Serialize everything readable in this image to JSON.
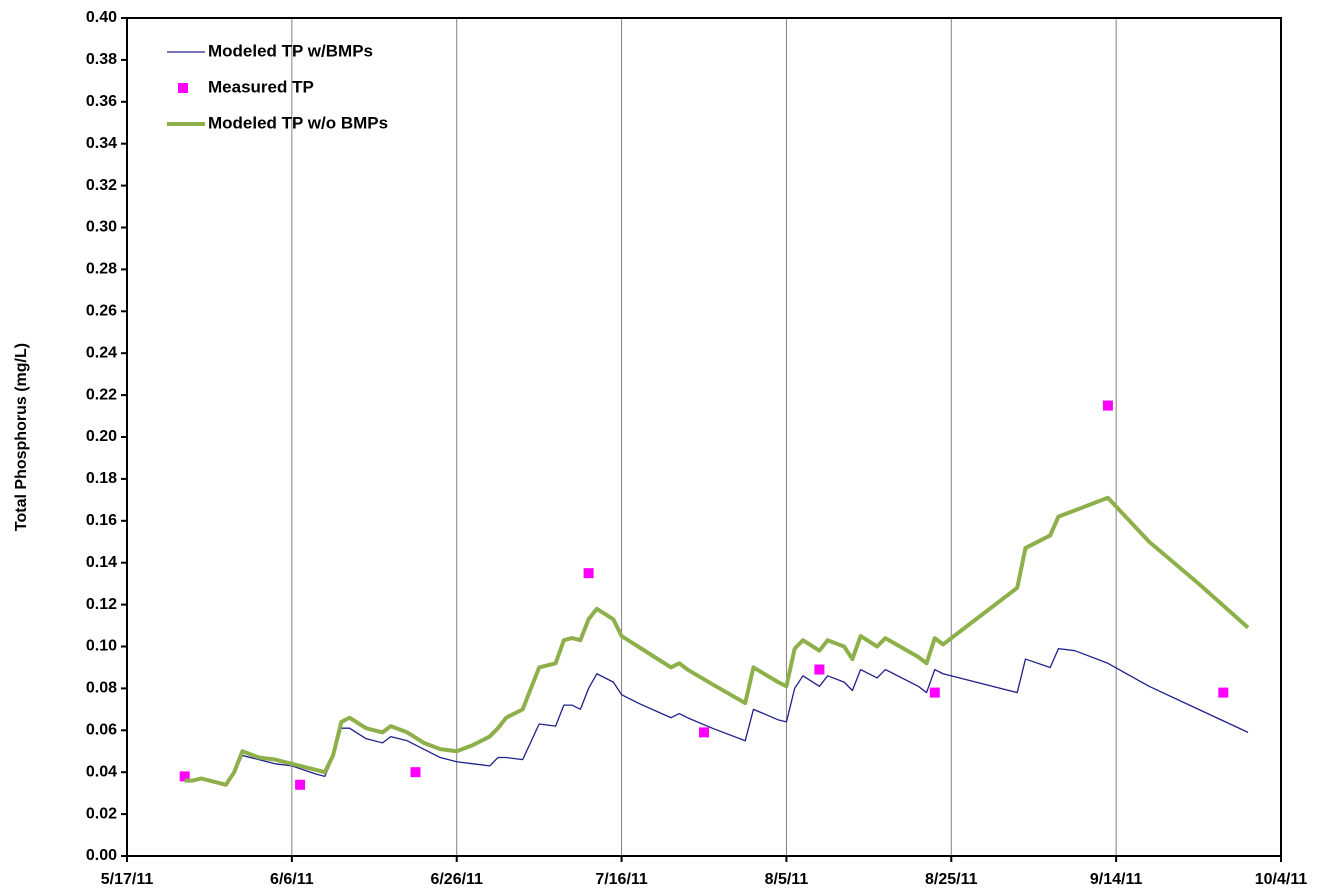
{
  "chart_data": {
    "type": "line",
    "ylabel": "Total Phosphorus (mg/L)",
    "xlim": [
      "2011-05-17",
      "2011-10-04"
    ],
    "xticks": [
      {
        "value": "2011-05-17",
        "label": "5/17/11"
      },
      {
        "value": "2011-06-06",
        "label": "6/6/11"
      },
      {
        "value": "2011-06-26",
        "label": "6/26/11"
      },
      {
        "value": "2011-07-16",
        "label": "7/16/11"
      },
      {
        "value": "2011-08-05",
        "label": "8/5/11"
      },
      {
        "value": "2011-08-25",
        "label": "8/25/11"
      },
      {
        "value": "2011-09-14",
        "label": "9/14/11"
      },
      {
        "value": "2011-10-04",
        "label": "10/4/11"
      }
    ],
    "ylim": [
      0,
      0.4
    ],
    "yticks": [
      {
        "value": 0,
        "label": "0.00"
      },
      0.02,
      0.04,
      0.06,
      0.08,
      {
        "value": 0.1,
        "label": "0.10"
      },
      0.12,
      0.14,
      0.16,
      0.18,
      {
        "value": 0.2,
        "label": "0.20"
      },
      0.22,
      0.24,
      0.26,
      0.28,
      {
        "value": 0.3,
        "label": "0.30"
      },
      0.32,
      0.34,
      0.36,
      0.38,
      {
        "value": 0.4,
        "label": "0.40"
      }
    ],
    "grid": "x",
    "legend": "upper left",
    "series": [
      {
        "name": "Modeled TP w/BMPs",
        "style": "line",
        "color": "#20208c",
        "x": [
          "2011-05-24",
          "2011-05-25",
          "2011-05-26",
          "2011-05-29",
          "2011-05-30",
          "2011-05-31",
          "2011-06-02",
          "2011-06-04",
          "2011-06-06",
          "2011-06-09",
          "2011-06-10",
          "2011-06-11",
          "2011-06-12",
          "2011-06-13",
          "2011-06-15",
          "2011-06-17",
          "2011-06-18",
          "2011-06-20",
          "2011-06-22",
          "2011-06-24",
          "2011-06-26",
          "2011-06-28",
          "2011-06-30",
          "2011-07-01",
          "2011-07-02",
          "2011-07-04",
          "2011-07-06",
          "2011-07-08",
          "2011-07-09",
          "2011-07-10",
          "2011-07-11",
          "2011-07-12",
          "2011-07-13",
          "2011-07-15",
          "2011-07-16",
          "2011-07-18",
          "2011-07-22",
          "2011-07-23",
          "2011-07-24",
          "2011-07-27",
          "2011-07-31",
          "2011-08-01",
          "2011-08-04",
          "2011-08-05",
          "2011-08-06",
          "2011-08-07",
          "2011-08-09",
          "2011-08-10",
          "2011-08-12",
          "2011-08-13",
          "2011-08-14",
          "2011-08-16",
          "2011-08-17",
          "2011-08-21",
          "2011-08-22",
          "2011-08-23",
          "2011-08-24",
          "2011-08-28",
          "2011-09-02",
          "2011-09-03",
          "2011-09-06",
          "2011-09-07",
          "2011-09-09",
          "2011-09-13",
          "2011-09-18",
          "2011-09-24",
          "2011-09-30"
        ],
        "values": [
          0.036,
          0.036,
          0.037,
          0.034,
          0.039,
          0.048,
          0.046,
          0.044,
          0.043,
          0.039,
          0.038,
          0.047,
          0.061,
          0.061,
          0.056,
          0.054,
          0.057,
          0.055,
          0.051,
          0.047,
          0.045,
          0.044,
          0.043,
          0.047,
          0.047,
          0.046,
          0.063,
          0.062,
          0.072,
          0.072,
          0.07,
          0.08,
          0.087,
          0.083,
          0.077,
          0.073,
          0.066,
          0.068,
          0.066,
          0.061,
          0.055,
          0.07,
          0.065,
          0.064,
          0.08,
          0.086,
          0.081,
          0.086,
          0.083,
          0.079,
          0.089,
          0.085,
          0.089,
          0.081,
          0.078,
          0.089,
          0.087,
          0.083,
          0.078,
          0.094,
          0.09,
          0.099,
          0.098,
          0.092,
          0.081,
          0.07,
          0.059
        ]
      },
      {
        "name": "Measured TP",
        "style": "marker",
        "color": "#ff00ff",
        "x": [
          "2011-05-24",
          "2011-06-07",
          "2011-06-21",
          "2011-07-12",
          "2011-07-26",
          "2011-08-09",
          "2011-08-23",
          "2011-09-13",
          "2011-09-27"
        ],
        "values": [
          0.038,
          0.034,
          0.04,
          0.135,
          0.059,
          0.089,
          0.078,
          0.215,
          0.078
        ]
      },
      {
        "name": "Modeled TP w/o BMPs",
        "style": "line",
        "color": "#8db04a",
        "x": [
          "2011-05-24",
          "2011-05-25",
          "2011-05-26",
          "2011-05-29",
          "2011-05-30",
          "2011-05-31",
          "2011-06-02",
          "2011-06-04",
          "2011-06-06",
          "2011-06-09",
          "2011-06-10",
          "2011-06-11",
          "2011-06-12",
          "2011-06-13",
          "2011-06-15",
          "2011-06-17",
          "2011-06-18",
          "2011-06-20",
          "2011-06-22",
          "2011-06-24",
          "2011-06-26",
          "2011-06-28",
          "2011-06-30",
          "2011-07-01",
          "2011-07-02",
          "2011-07-04",
          "2011-07-06",
          "2011-07-08",
          "2011-07-09",
          "2011-07-10",
          "2011-07-11",
          "2011-07-12",
          "2011-07-13",
          "2011-07-15",
          "2011-07-16",
          "2011-07-18",
          "2011-07-22",
          "2011-07-23",
          "2011-07-24",
          "2011-07-27",
          "2011-07-31",
          "2011-08-01",
          "2011-08-04",
          "2011-08-05",
          "2011-08-06",
          "2011-08-07",
          "2011-08-09",
          "2011-08-10",
          "2011-08-12",
          "2011-08-13",
          "2011-08-14",
          "2011-08-16",
          "2011-08-17",
          "2011-08-21",
          "2011-08-22",
          "2011-08-23",
          "2011-08-24",
          "2011-08-28",
          "2011-09-02",
          "2011-09-03",
          "2011-09-06",
          "2011-09-07",
          "2011-09-09",
          "2011-09-13",
          "2011-09-18",
          "2011-09-24",
          "2011-09-30"
        ],
        "values": [
          0.036,
          0.036,
          0.037,
          0.034,
          0.04,
          0.05,
          0.047,
          0.046,
          0.044,
          0.041,
          0.04,
          0.048,
          0.064,
          0.066,
          0.061,
          0.059,
          0.062,
          0.059,
          0.054,
          0.051,
          0.05,
          0.053,
          0.057,
          0.061,
          0.066,
          0.07,
          0.09,
          0.092,
          0.103,
          0.104,
          0.103,
          0.113,
          0.118,
          0.113,
          0.105,
          0.1,
          0.09,
          0.092,
          0.089,
          0.082,
          0.073,
          0.09,
          0.083,
          0.081,
          0.099,
          0.103,
          0.098,
          0.103,
          0.1,
          0.094,
          0.105,
          0.1,
          0.104,
          0.095,
          0.092,
          0.104,
          0.101,
          0.113,
          0.128,
          0.147,
          0.153,
          0.162,
          0.165,
          0.171,
          0.15,
          0.13,
          0.109
        ]
      }
    ]
  }
}
